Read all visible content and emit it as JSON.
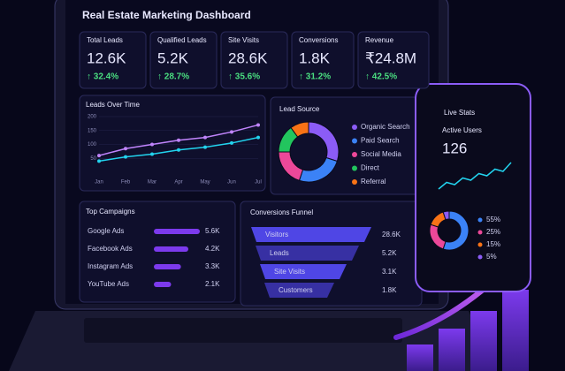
{
  "title": "Real Estate Marketing Dashboard",
  "kpis": [
    {
      "label": "Total Leads",
      "value": "12.6K",
      "change": "↑ 32.4%"
    },
    {
      "label": "Qualified Leads",
      "value": "5.2K",
      "change": "↑ 28.7%"
    },
    {
      "label": "Site Visits",
      "value": "28.6K",
      "change": "↑ 35.6%"
    },
    {
      "label": "Conversions",
      "value": "1.8K",
      "change": "↑ 31.2%"
    },
    {
      "label": "Revenue",
      "value": "₹24.8M",
      "change": "↑ 42.5%"
    }
  ],
  "leads_over_time": {
    "type": "line",
    "title": "Leads Over Time",
    "categories": [
      "Jan",
      "Feb",
      "Mar",
      "Apr",
      "May",
      "Jun",
      "Jul"
    ],
    "ylim": [
      0,
      200
    ],
    "yticks": [
      50,
      100,
      150,
      200
    ],
    "series": [
      {
        "color": "#c084fc",
        "values": [
          60,
          85,
          100,
          115,
          125,
          145,
          170
        ]
      },
      {
        "color": "#22d3ee",
        "values": [
          40,
          55,
          65,
          80,
          90,
          105,
          125
        ]
      }
    ]
  },
  "lead_source": {
    "type": "pie",
    "title": "Lead Source",
    "categories": [
      "Organic Search",
      "Paid Search",
      "Social Media",
      "Direct",
      "Referral"
    ],
    "values": [
      30,
      25,
      20,
      15,
      10
    ],
    "colors": [
      "#8b5cf6",
      "#3b82f6",
      "#ec4899",
      "#22c55e",
      "#f97316"
    ]
  },
  "top_campaigns": {
    "type": "bar",
    "title": "Top Campaigns",
    "categories": [
      "Google Ads",
      "Facebook Ads",
      "Instagram Ads",
      "YouTube Ads"
    ],
    "values": [
      5600,
      4200,
      3300,
      2100
    ],
    "value_labels": [
      "5.6K",
      "4.2K",
      "3.3K",
      "2.1K"
    ],
    "color": "#7c3aed"
  },
  "funnel": {
    "title": "Conversions Funnel",
    "stages": [
      "Visitors",
      "Leads",
      "Site Visits",
      "Customers"
    ],
    "value_labels": [
      "28.6K",
      "5.2K",
      "3.1K",
      "1.8K"
    ]
  },
  "phone": {
    "title": "Live Stats",
    "metric": "Active Users",
    "metric_value": "126",
    "trend": {
      "type": "line",
      "color": "#22d3ee",
      "values": [
        20,
        35,
        30,
        45,
        40,
        55,
        50,
        65,
        60,
        80
      ]
    },
    "donut": {
      "type": "pie",
      "values": [
        55,
        25,
        15,
        5
      ],
      "value_labels": [
        "55%",
        "25%",
        "15%",
        "5%"
      ],
      "colors": [
        "#3b82f6",
        "#ec4899",
        "#f97316",
        "#8b5cf6"
      ]
    }
  }
}
